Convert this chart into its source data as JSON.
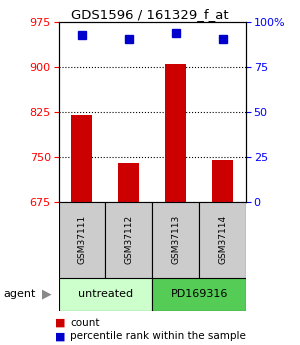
{
  "title": "GDS1596 / 161329_f_at",
  "samples": [
    "GSM37111",
    "GSM37112",
    "GSM37113",
    "GSM37114"
  ],
  "counts": [
    820,
    740,
    905,
    745
  ],
  "percentiles": [
    93,
    91,
    94,
    91
  ],
  "ymin": 675,
  "ymax": 975,
  "yticks_left": [
    675,
    750,
    825,
    900,
    975
  ],
  "yticks_right": [
    0,
    25,
    50,
    75,
    100
  ],
  "bar_color": "#cc0000",
  "dot_color": "#0000cc",
  "agent_groups": [
    {
      "label": "untreated",
      "color": "#ccffcc",
      "span": [
        0,
        2
      ]
    },
    {
      "label": "PD169316",
      "color": "#55cc55",
      "span": [
        2,
        4
      ]
    }
  ],
  "sample_box_color": "#cccccc",
  "legend_items": [
    {
      "color": "#cc0000",
      "label": "count"
    },
    {
      "color": "#0000cc",
      "label": "percentile rank within the sample"
    }
  ]
}
